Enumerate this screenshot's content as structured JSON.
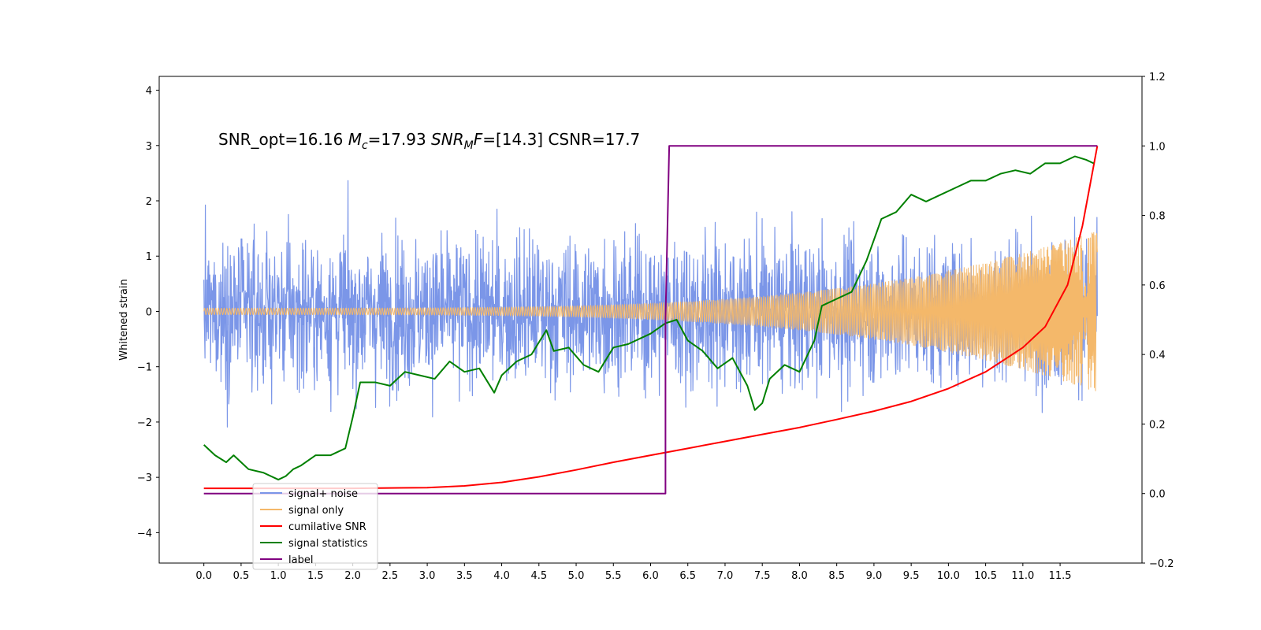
{
  "chart_data": {
    "type": "line",
    "title": "",
    "xlabel": "",
    "ylabel": "Whitened strain",
    "xlim": [
      -0.6,
      12.6
    ],
    "ylim": [
      -4.55,
      4.25
    ],
    "y2lim": [
      -0.2,
      1.2
    ],
    "x_ticks": [
      0.0,
      0.5,
      1.0,
      1.5,
      2.0,
      2.5,
      3.0,
      3.5,
      4.0,
      4.5,
      5.0,
      5.5,
      6.0,
      6.5,
      7.0,
      7.5,
      8.0,
      8.5,
      9.0,
      9.5,
      10.0,
      10.5,
      11.0,
      11.5
    ],
    "x_tick_labels": [
      "0.0",
      "0.5",
      "1.0",
      "1.5",
      "2.0",
      "2.5",
      "3.0",
      "3.5",
      "4.0",
      "4.5",
      "5.0",
      "5.5",
      "6.0",
      "6.5",
      "7.0",
      "7.5",
      "8.0",
      "8.5",
      "9.0",
      "9.5",
      "10.0",
      "10.5",
      "11.0",
      "11.5"
    ],
    "y_ticks": [
      -4,
      -3,
      -2,
      -1,
      0,
      1,
      2,
      3,
      4
    ],
    "y_tick_labels": [
      "−4",
      "−3",
      "−2",
      "−1",
      "0",
      "1",
      "2",
      "3",
      "4"
    ],
    "y2_ticks": [
      -0.2,
      0.0,
      0.2,
      0.4,
      0.6,
      0.8,
      1.0,
      1.2
    ],
    "y2_tick_labels": [
      "−0.2",
      "0.0",
      "0.2",
      "0.4",
      "0.6",
      "0.8",
      "1.0",
      "1.2"
    ],
    "annotation": {
      "part1": "SNR_opt=16.16 ",
      "mc_symbol": "M",
      "mc_sub": "c",
      "part2": "=17.93  ",
      "snr_symbol": "SNR",
      "snr_sub": "M",
      "snr_tail": "F",
      "part3": "=[14.3]   CSNR=17.7"
    },
    "grid": false,
    "legend_position": "lower-left",
    "series": [
      {
        "name": "signal+ noise",
        "color": "#7b96e8",
        "axis": "left",
        "kind": "noise",
        "x_range": [
          0.0,
          12.0
        ],
        "sample_count": 2400,
        "spread": 0.95,
        "envelope_low": [
          -4.1,
          -3.3
        ],
        "envelope_high": [
          3.85,
          2.0
        ]
      },
      {
        "name": "signal only",
        "color": "#f4b86a",
        "axis": "left",
        "kind": "chirp",
        "x_range": [
          0.0,
          12.0
        ],
        "amplitude_start": 0.03,
        "amplitude_end": 1.4
      },
      {
        "name": "cumilative SNR",
        "color": "#ff0000",
        "axis": "right",
        "x": [
          0.0,
          1.0,
          2.0,
          3.0,
          3.5,
          4.0,
          4.5,
          5.0,
          5.5,
          6.0,
          6.5,
          7.0,
          7.5,
          8.0,
          8.5,
          9.0,
          9.5,
          10.0,
          10.5,
          11.0,
          11.3,
          11.6,
          11.8,
          12.0
        ],
        "y": [
          0.015,
          0.015,
          0.015,
          0.017,
          0.022,
          0.032,
          0.048,
          0.068,
          0.09,
          0.11,
          0.13,
          0.15,
          0.17,
          0.19,
          0.213,
          0.237,
          0.265,
          0.302,
          0.35,
          0.42,
          0.48,
          0.6,
          0.77,
          1.0
        ]
      },
      {
        "name": "signal statistics",
        "color": "#008000",
        "axis": "right",
        "x": [
          0.0,
          0.15,
          0.3,
          0.4,
          0.5,
          0.6,
          0.8,
          1.0,
          1.1,
          1.2,
          1.3,
          1.5,
          1.7,
          1.9,
          2.0,
          2.1,
          2.3,
          2.5,
          2.7,
          2.9,
          3.1,
          3.3,
          3.5,
          3.7,
          3.9,
          4.0,
          4.2,
          4.4,
          4.6,
          4.7,
          4.9,
          5.1,
          5.3,
          5.5,
          5.7,
          5.9,
          6.0,
          6.2,
          6.35,
          6.5,
          6.7,
          6.9,
          7.1,
          7.3,
          7.4,
          7.5,
          7.6,
          7.8,
          8.0,
          8.2,
          8.3,
          8.5,
          8.7,
          8.9,
          9.1,
          9.3,
          9.5,
          9.7,
          9.9,
          10.1,
          10.3,
          10.5,
          10.7,
          10.9,
          11.1,
          11.3,
          11.5,
          11.7,
          11.85,
          11.95
        ],
        "y": [
          0.14,
          0.11,
          0.09,
          0.11,
          0.09,
          0.07,
          0.06,
          0.04,
          0.05,
          0.07,
          0.08,
          0.11,
          0.11,
          0.13,
          0.22,
          0.32,
          0.32,
          0.31,
          0.35,
          0.34,
          0.33,
          0.38,
          0.35,
          0.36,
          0.29,
          0.34,
          0.38,
          0.4,
          0.47,
          0.41,
          0.42,
          0.37,
          0.35,
          0.42,
          0.43,
          0.45,
          0.46,
          0.49,
          0.5,
          0.44,
          0.41,
          0.36,
          0.39,
          0.31,
          0.24,
          0.26,
          0.33,
          0.37,
          0.35,
          0.44,
          0.54,
          0.56,
          0.58,
          0.67,
          0.79,
          0.81,
          0.86,
          0.84,
          0.86,
          0.88,
          0.9,
          0.9,
          0.92,
          0.93,
          0.92,
          0.95,
          0.95,
          0.97,
          0.96,
          0.95
        ]
      },
      {
        "name": "label",
        "color": "#800080",
        "axis": "right",
        "x": [
          0.0,
          6.2,
          6.2,
          6.25,
          12.0
        ],
        "y": [
          0.0,
          0.0,
          0.5,
          1.0,
          1.0
        ]
      }
    ]
  }
}
